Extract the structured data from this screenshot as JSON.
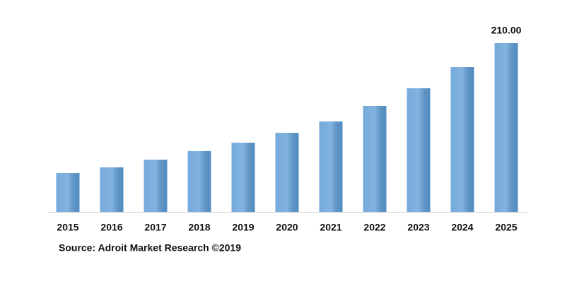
{
  "chart_data": {
    "type": "bar",
    "categories": [
      "2015",
      "2016",
      "2017",
      "2018",
      "2019",
      "2020",
      "2021",
      "2022",
      "2023",
      "2024",
      "2025"
    ],
    "values": [
      48.3,
      55.4,
      65,
      75.6,
      86.1,
      98.4,
      112.5,
      131.8,
      153.8,
      180.1,
      210
    ],
    "value_labels": [
      null,
      null,
      null,
      null,
      null,
      null,
      null,
      null,
      null,
      null,
      "210.00"
    ],
    "color": "#5b9bd5",
    "source": "Source: Adroit Market Research ©2019"
  }
}
